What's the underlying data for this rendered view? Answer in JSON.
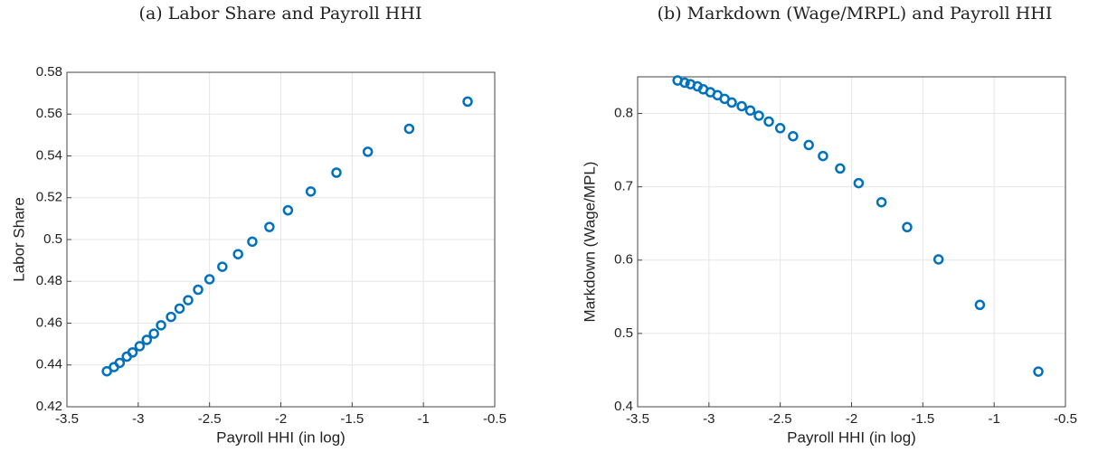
{
  "chart_data": [
    {
      "type": "scatter",
      "title": "(a) Labor Share and Payroll HHI",
      "xlabel": "Payroll HHI (in log)",
      "ylabel": "Labor Share",
      "x": [
        -3.22,
        -3.17,
        -3.13,
        -3.08,
        -3.04,
        -2.99,
        -2.94,
        -2.89,
        -2.84,
        -2.77,
        -2.71,
        -2.65,
        -2.58,
        -2.5,
        -2.41,
        -2.3,
        -2.2,
        -2.08,
        -1.95,
        -1.79,
        -1.61,
        -1.39,
        -1.1,
        -0.69
      ],
      "values": [
        0.437,
        0.439,
        0.441,
        0.444,
        0.446,
        0.449,
        0.452,
        0.455,
        0.459,
        0.463,
        0.467,
        0.471,
        0.476,
        0.481,
        0.487,
        0.493,
        0.499,
        0.506,
        0.514,
        0.523,
        0.532,
        0.542,
        0.553,
        0.566
      ],
      "color": "#0072bd",
      "xlim": [
        -3.5,
        -0.5
      ],
      "xticks": [
        -3.5,
        -3,
        -2.5,
        -2,
        -1.5,
        -1,
        -0.5
      ],
      "ylim": [
        0.42,
        0.58
      ],
      "yticks": [
        0.42,
        0.44,
        0.46,
        0.48,
        0.5,
        0.52,
        0.54,
        0.56,
        0.58
      ],
      "grid": true
    },
    {
      "type": "scatter",
      "title": "(b) Markdown (Wage/MRPL) and Payroll HHI",
      "xlabel": "Payroll HHI (in log)",
      "ylabel": "Markdown (Wage/MPL)",
      "x": [
        -3.22,
        -3.17,
        -3.13,
        -3.08,
        -3.04,
        -2.99,
        -2.94,
        -2.89,
        -2.84,
        -2.77,
        -2.71,
        -2.65,
        -2.58,
        -2.5,
        -2.41,
        -2.3,
        -2.2,
        -2.08,
        -1.95,
        -1.79,
        -1.61,
        -1.39,
        -1.1,
        -0.69
      ],
      "values": [
        0.845,
        0.842,
        0.84,
        0.837,
        0.833,
        0.829,
        0.825,
        0.82,
        0.815,
        0.81,
        0.804,
        0.797,
        0.789,
        0.78,
        0.769,
        0.757,
        0.742,
        0.725,
        0.705,
        0.679,
        0.645,
        0.601,
        0.539,
        0.448
      ],
      "color": "#0072bd",
      "xlim": [
        -3.5,
        -0.5
      ],
      "xticks": [
        -3.5,
        -3,
        -2.5,
        -2,
        -1.5,
        -1,
        -0.5
      ],
      "ylim": [
        0.4,
        0.85
      ],
      "yticks": [
        0.4,
        0.5,
        0.6,
        0.7,
        0.8
      ],
      "grid": true
    }
  ]
}
